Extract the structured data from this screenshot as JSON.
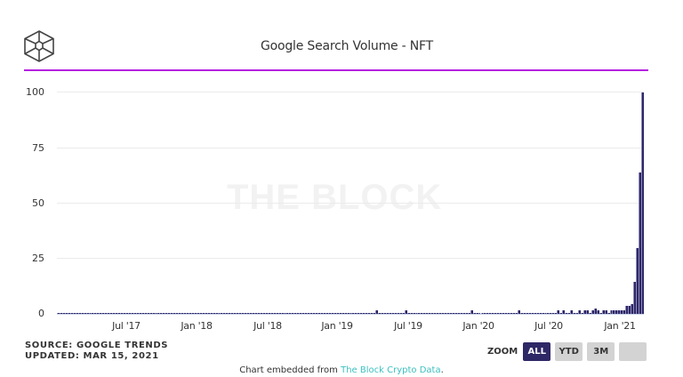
{
  "header": {
    "title": "Google Search Volume - NFT",
    "logo": "the-block-cube-logo",
    "accent_color": "#b620e0"
  },
  "watermark": "THE BLOCK",
  "footer": {
    "source": "SOURCE: GOOGLE TRENDS",
    "updated": "UPDATED: MAR 15, 2021",
    "embed_prefix": "Chart embedded from ",
    "embed_link": "The Block Crypto Data",
    "embed_suffix": "."
  },
  "zoom": {
    "label": "ZOOM",
    "buttons": [
      {
        "label": "ALL",
        "active": true
      },
      {
        "label": "YTD",
        "active": false
      },
      {
        "label": "3M",
        "active": false
      },
      {
        "label": "",
        "active": false
      }
    ]
  },
  "colors": {
    "bar": "#2e2866",
    "active_button": "#2e2866",
    "inactive_button": "#d3d3d3",
    "link": "#3dbfbf"
  },
  "chart_data": {
    "type": "bar",
    "title": "Google Search Volume - NFT",
    "xlabel": "",
    "ylabel": "",
    "ylim": [
      0,
      100
    ],
    "yticks": [
      0,
      25,
      50,
      75,
      100
    ],
    "xticks": [
      "Jul '17",
      "Jan '18",
      "Jul '18",
      "Jan '19",
      "Jul '19",
      "Jan '20",
      "Jul '20",
      "Jan '21"
    ],
    "grid": true,
    "legend": "none",
    "granularity": "weekly",
    "x_range": [
      "Mar '17",
      "Mar '21"
    ],
    "series": [
      {
        "name": "NFT",
        "values": [
          1,
          1,
          1,
          1,
          1,
          1,
          1,
          1,
          1,
          1,
          1,
          1,
          1,
          1,
          1,
          1,
          1,
          1,
          1,
          1,
          1,
          1,
          1,
          1,
          1,
          1,
          1,
          1,
          1,
          1,
          1,
          1,
          1,
          1,
          1,
          1,
          1,
          1,
          1,
          1,
          1,
          1,
          1,
          1,
          1,
          1,
          1,
          1,
          1,
          1,
          1,
          1,
          1,
          1,
          1,
          1,
          1,
          1,
          1,
          1,
          1,
          1,
          1,
          1,
          1,
          1,
          1,
          1,
          1,
          1,
          1,
          1,
          1,
          1,
          1,
          1,
          1,
          1,
          1,
          1,
          1,
          1,
          1,
          1,
          1,
          1,
          1,
          1,
          1,
          1,
          1,
          1,
          1,
          1,
          1,
          1,
          1,
          1,
          1,
          1,
          1,
          1,
          1,
          1,
          1,
          1,
          1,
          1,
          1,
          1,
          1,
          1,
          1,
          1,
          1,
          1,
          1,
          1,
          1,
          1,
          1,
          2,
          1,
          1,
          1,
          1,
          1,
          1,
          1,
          1,
          1,
          1,
          2,
          1,
          1,
          1,
          1,
          1,
          1,
          1,
          1,
          1,
          1,
          1,
          1,
          1,
          1,
          1,
          1,
          1,
          1,
          1,
          1,
          1,
          1,
          1,
          1,
          2,
          1,
          1,
          1,
          1,
          1,
          1,
          1,
          1,
          1,
          1,
          1,
          1,
          1,
          1,
          1,
          1,
          1,
          2,
          1,
          1,
          1,
          1,
          1,
          1,
          1,
          1,
          1,
          1,
          1,
          1,
          1,
          1,
          2,
          1,
          2,
          1,
          1,
          2,
          1,
          1,
          2,
          1,
          2,
          2,
          1,
          2,
          3,
          2,
          1,
          2,
          2,
          1,
          2,
          2,
          2,
          2,
          2,
          2,
          4,
          4,
          5,
          15,
          30,
          64,
          100
        ]
      }
    ],
    "annotations": [
      "THE BLOCK watermark"
    ]
  }
}
